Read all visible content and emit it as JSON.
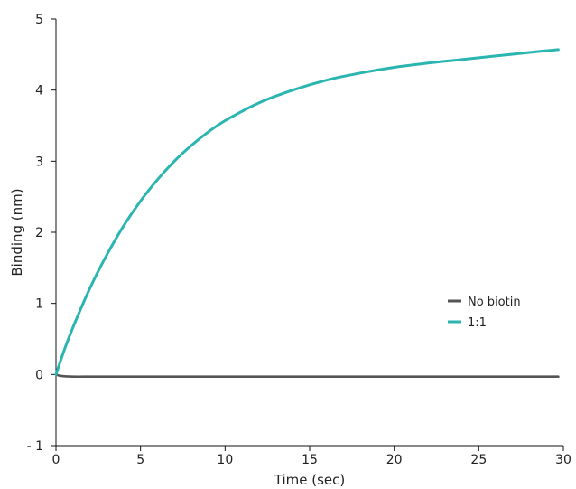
{
  "chart_data": {
    "type": "line",
    "title": "",
    "xlabel": "Time (sec)",
    "ylabel": "Binding (nm)",
    "xlim": [
      0,
      30
    ],
    "ylim": [
      -1,
      5
    ],
    "xticks": [
      0,
      5,
      10,
      15,
      20,
      25,
      30
    ],
    "yticks": [
      -1,
      0,
      1,
      2,
      3,
      4,
      5
    ],
    "grid": false,
    "legend_position": "right",
    "series": [
      {
        "name": "No biotin",
        "color": "#555555",
        "x": [
          0,
          0.3,
          1,
          2,
          3,
          5,
          7.5,
          10,
          12.5,
          15,
          17.5,
          20,
          22.5,
          25,
          27.5,
          29.7
        ],
        "y": [
          0,
          -0.02,
          -0.03,
          -0.03,
          -0.03,
          -0.03,
          -0.03,
          -0.03,
          -0.03,
          -0.03,
          -0.03,
          -0.03,
          -0.03,
          -0.03,
          -0.03,
          -0.03
        ]
      },
      {
        "name": "1:1",
        "color": "#2bb5b1",
        "x": [
          0,
          0.5,
          1,
          2,
          3,
          4,
          5,
          6,
          7,
          8,
          9,
          10,
          12,
          14,
          16,
          18,
          20,
          22,
          24,
          26,
          28,
          29.7
        ],
        "y": [
          0,
          0.35,
          0.66,
          1.21,
          1.68,
          2.09,
          2.44,
          2.74,
          3.0,
          3.22,
          3.41,
          3.57,
          3.82,
          4.0,
          4.14,
          4.24,
          4.32,
          4.38,
          4.43,
          4.48,
          4.53,
          4.57
        ]
      }
    ]
  }
}
